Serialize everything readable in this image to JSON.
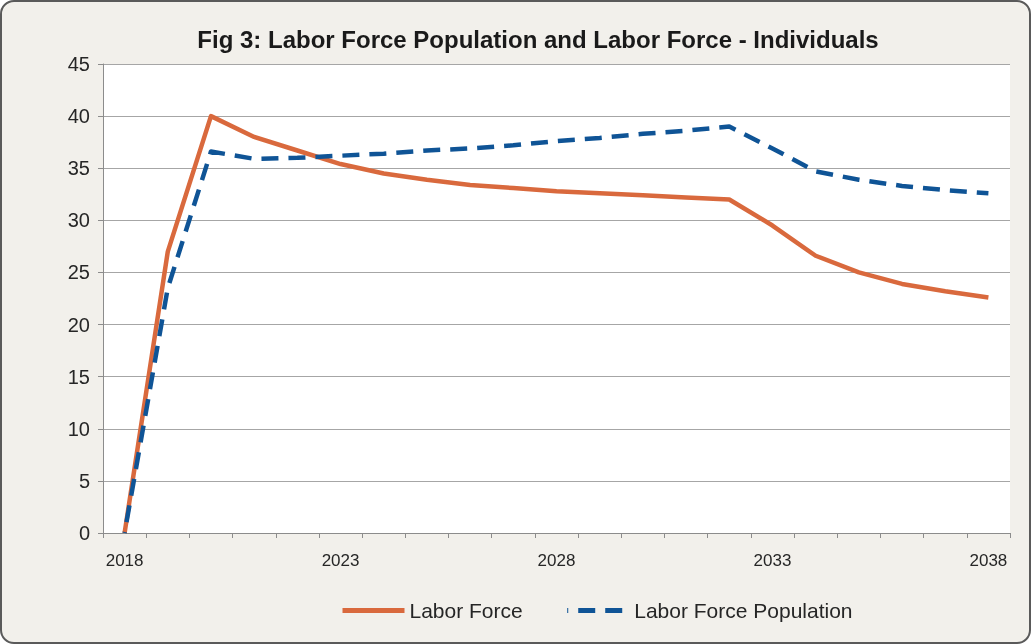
{
  "chart_data": {
    "type": "line",
    "title": "Fig 3: Labor Force Population and Labor Force - Individuals",
    "categories": [
      "2018",
      null,
      null,
      null,
      null,
      "2023",
      null,
      null,
      null,
      null,
      "2028",
      null,
      null,
      null,
      null,
      "2033",
      null,
      null,
      null,
      null,
      "2038"
    ],
    "series": [
      {
        "name": "Labor Force",
        "color": "#d9693d",
        "line_style": "solid",
        "values": [
          0,
          27.0,
          40,
          38,
          36.7,
          35.4,
          34.5,
          33.9,
          33.4,
          33.1,
          32.8,
          32.6,
          32.4,
          32.2,
          32.0,
          29.5,
          26.6,
          25.0,
          23.9,
          23.2,
          22.6
        ]
      },
      {
        "name": "Labor Force Population",
        "color": "#0f5496",
        "line_style": "dashed",
        "values": [
          0,
          23.5,
          36.6,
          35.9,
          36.0,
          36.2,
          36.4,
          36.7,
          36.9,
          37.2,
          37.6,
          37.9,
          38.3,
          38.6,
          39.0,
          36.9,
          34.7,
          33.9,
          33.3,
          32.9,
          32.6
        ]
      }
    ],
    "ylim": [
      0,
      45
    ],
    "yticks": [
      0,
      5,
      10,
      15,
      20,
      25,
      30,
      35,
      40,
      45
    ],
    "grid": "y",
    "legend": "bottom"
  }
}
